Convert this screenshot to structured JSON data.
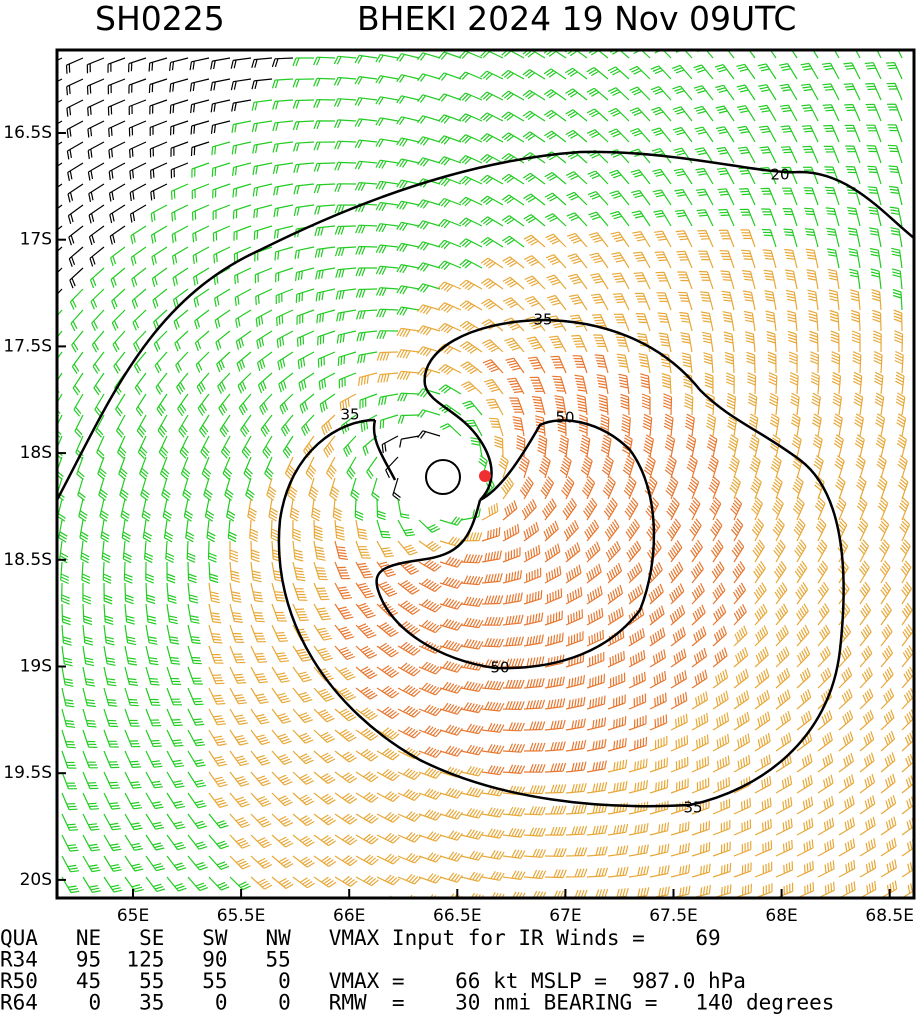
{
  "header": {
    "storm_id": "SH0225",
    "title": "BHEKI 2024 19 Nov 09UTC"
  },
  "map": {
    "lat_labels": [
      "16.5S",
      "17S",
      "17.5S",
      "18S",
      "18.5S",
      "19S",
      "19.5S",
      "20S"
    ],
    "lon_labels": [
      "65E",
      "65.5E",
      "66E",
      "66.5E",
      "67E",
      "67.5E",
      "68E",
      "68.5E"
    ],
    "contour_labels": [
      "20",
      "35",
      "35",
      "50",
      "50",
      "35"
    ]
  },
  "footer": {
    "lines": [
      "QUA   NE   SE   SW   NW   VMAX Input for IR Winds =    69",
      "R34   95  125   90   55",
      "R50   45   55   55    0   VMAX =    66 kt MSLP =  987.0 hPa",
      "R64    0   35    0    0   RMW  =    30 nmi BEARING =   140 degrees"
    ]
  }
}
